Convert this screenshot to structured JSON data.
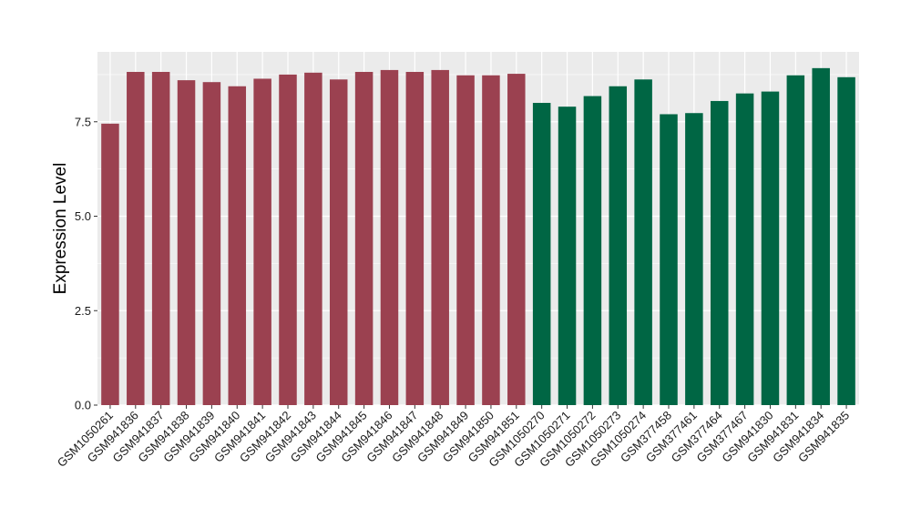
{
  "chart_data": {
    "type": "bar",
    "ylabel": "Expression Level",
    "xlabel": "",
    "ylim": [
      0,
      9.35
    ],
    "yticks": [
      0.0,
      2.5,
      5.0,
      7.5
    ],
    "ytick_labels": [
      "0.0",
      "2.5",
      "5.0",
      "7.5"
    ],
    "grid": true,
    "panel_background": "#ebebeb",
    "gridline_color": "#ffffff",
    "series": [
      {
        "color": "#9b4150",
        "categories": [
          "GSM1050261",
          "GSM941836",
          "GSM941837",
          "GSM941838",
          "GSM941839",
          "GSM941840",
          "GSM941841",
          "GSM941842",
          "GSM941843",
          "GSM941844",
          "GSM941845",
          "GSM941846",
          "GSM941847",
          "GSM941848",
          "GSM941849",
          "GSM941850",
          "GSM941851"
        ],
        "values": [
          7.45,
          8.82,
          8.82,
          8.6,
          8.55,
          8.44,
          8.64,
          8.75,
          8.8,
          8.62,
          8.82,
          8.87,
          8.82,
          8.87,
          8.73,
          8.73,
          8.77
        ]
      },
      {
        "color": "#006644",
        "categories": [
          "GSM1050270",
          "GSM1050271",
          "GSM1050272",
          "GSM1050273",
          "GSM1050274",
          "GSM377458",
          "GSM377461",
          "GSM377464",
          "GSM377467",
          "GSM941830",
          "GSM941831",
          "GSM941834",
          "GSM941835"
        ],
        "values": [
          8.0,
          7.9,
          8.18,
          8.44,
          8.62,
          7.7,
          7.73,
          8.05,
          8.25,
          8.3,
          8.73,
          8.92,
          8.68
        ]
      }
    ]
  }
}
